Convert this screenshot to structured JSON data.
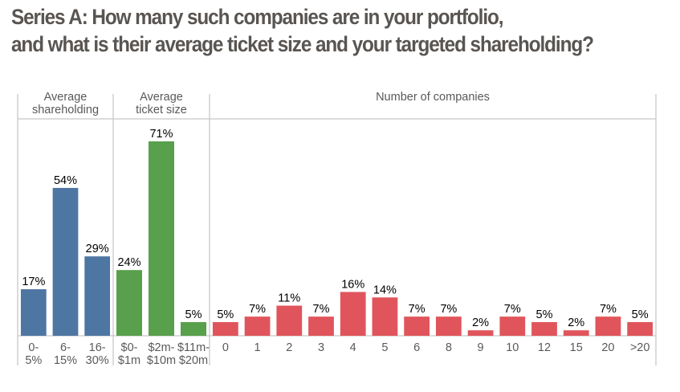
{
  "title": {
    "line1": "Series A: How many such companies are in your portfolio,",
    "line2": "and what is their average ticket size and your targeted shareholding?"
  },
  "chart_data": [
    {
      "type": "bar",
      "panel": "Average shareholding",
      "header": [
        "Average",
        "shareholding"
      ],
      "color": "#4e76a3",
      "categories": [
        [
          "0-",
          "5%"
        ],
        [
          "6-",
          "15%"
        ],
        [
          "16-",
          "30%"
        ]
      ],
      "values": [
        17,
        54,
        29
      ],
      "value_labels": [
        "17%",
        "54%",
        "29%"
      ],
      "ylim": [
        0,
        80
      ],
      "grid": false
    },
    {
      "type": "bar",
      "panel": "Average ticket size",
      "header": [
        "Average",
        "ticket size"
      ],
      "color": "#58a04b",
      "categories": [
        [
          "$0-",
          "$1m"
        ],
        [
          "$2m-",
          "$10m"
        ],
        [
          "$11m-",
          "$20m"
        ]
      ],
      "values": [
        24,
        71,
        5
      ],
      "value_labels": [
        "24%",
        "71%",
        "5%"
      ],
      "ylim": [
        0,
        80
      ],
      "grid": false
    },
    {
      "type": "bar",
      "panel": "Number of companies",
      "header": [
        "Number of companies"
      ],
      "color": "#e0555b",
      "categories": [
        [
          "0"
        ],
        [
          "1"
        ],
        [
          "2"
        ],
        [
          "3"
        ],
        [
          "4"
        ],
        [
          "5"
        ],
        [
          "6"
        ],
        [
          "8"
        ],
        [
          "9"
        ],
        [
          "10"
        ],
        [
          "12"
        ],
        [
          "15"
        ],
        [
          "20"
        ],
        [
          ">20"
        ]
      ],
      "values": [
        5,
        7,
        11,
        7,
        16,
        14,
        7,
        7,
        2,
        7,
        5,
        2,
        7,
        5
      ],
      "value_labels": [
        "5%",
        "7%",
        "11%",
        "7%",
        "16%",
        "14%",
        "7%",
        "7%",
        "2%",
        "7%",
        "5%",
        "2%",
        "7%",
        "5%"
      ],
      "ylim": [
        0,
        80
      ],
      "grid": false
    }
  ]
}
